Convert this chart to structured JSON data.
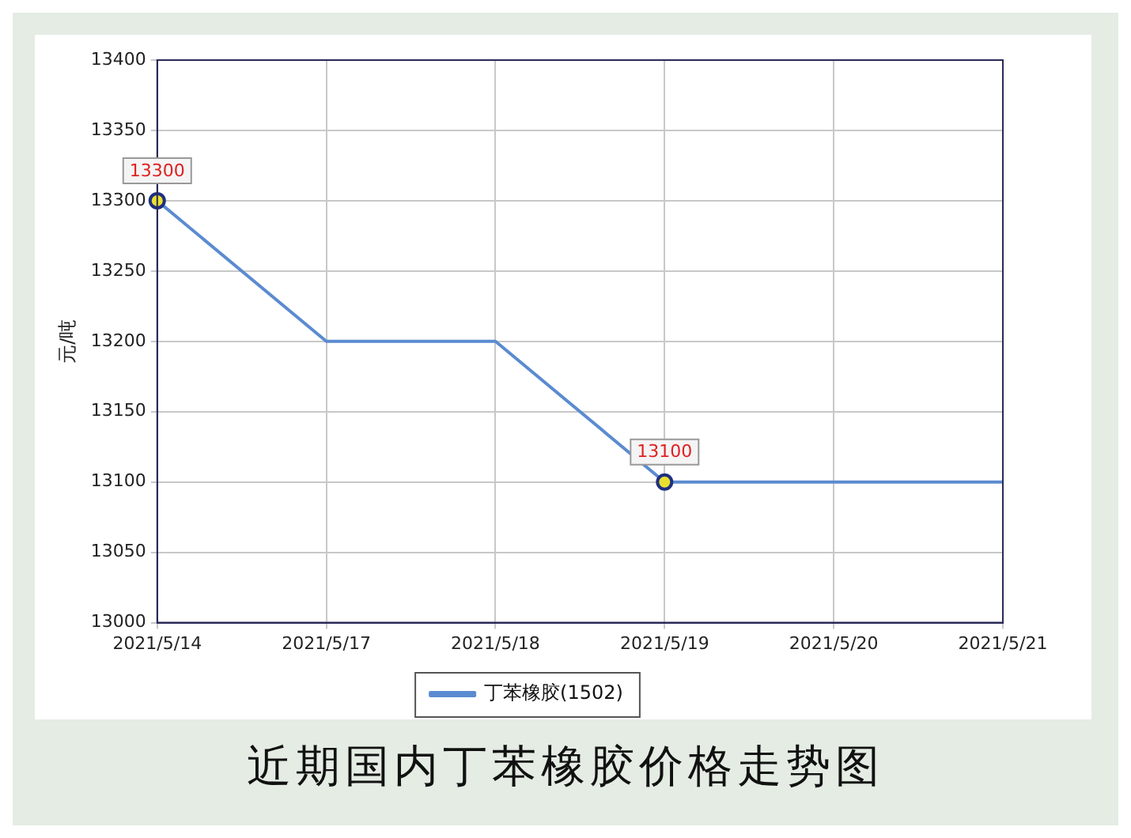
{
  "chart_data": {
    "type": "line",
    "title": "近期国内丁苯橡胶价格走势图",
    "ylabel": "元/吨",
    "categories": [
      "2021/5/14",
      "2021/5/17",
      "2021/5/18",
      "2021/5/19",
      "2021/5/20",
      "2021/5/21"
    ],
    "series": [
      {
        "name": "丁苯橡胶(1502)",
        "color": "#5b8bd0",
        "marker": "none",
        "values": [
          13300,
          13200,
          13200,
          13100,
          13100,
          13100
        ]
      },
      {
        "type": "scatter",
        "color": "#e8e030",
        "marker": "circle",
        "x": [
          "2021/5/14",
          "2021/5/19"
        ],
        "values": [
          13300,
          13100
        ]
      }
    ],
    "annotations": [
      {
        "text": "13300",
        "x": "2021/5/14",
        "y": 13300
      },
      {
        "text": "13100",
        "x": "2021/5/19",
        "y": 13100
      }
    ],
    "ylim": [
      13000,
      13400
    ],
    "yticks": [
      13000,
      13050,
      13100,
      13150,
      13200,
      13250,
      13300,
      13350,
      13400
    ],
    "grid": true,
    "legend": "bottom",
    "line_style": "solid"
  }
}
